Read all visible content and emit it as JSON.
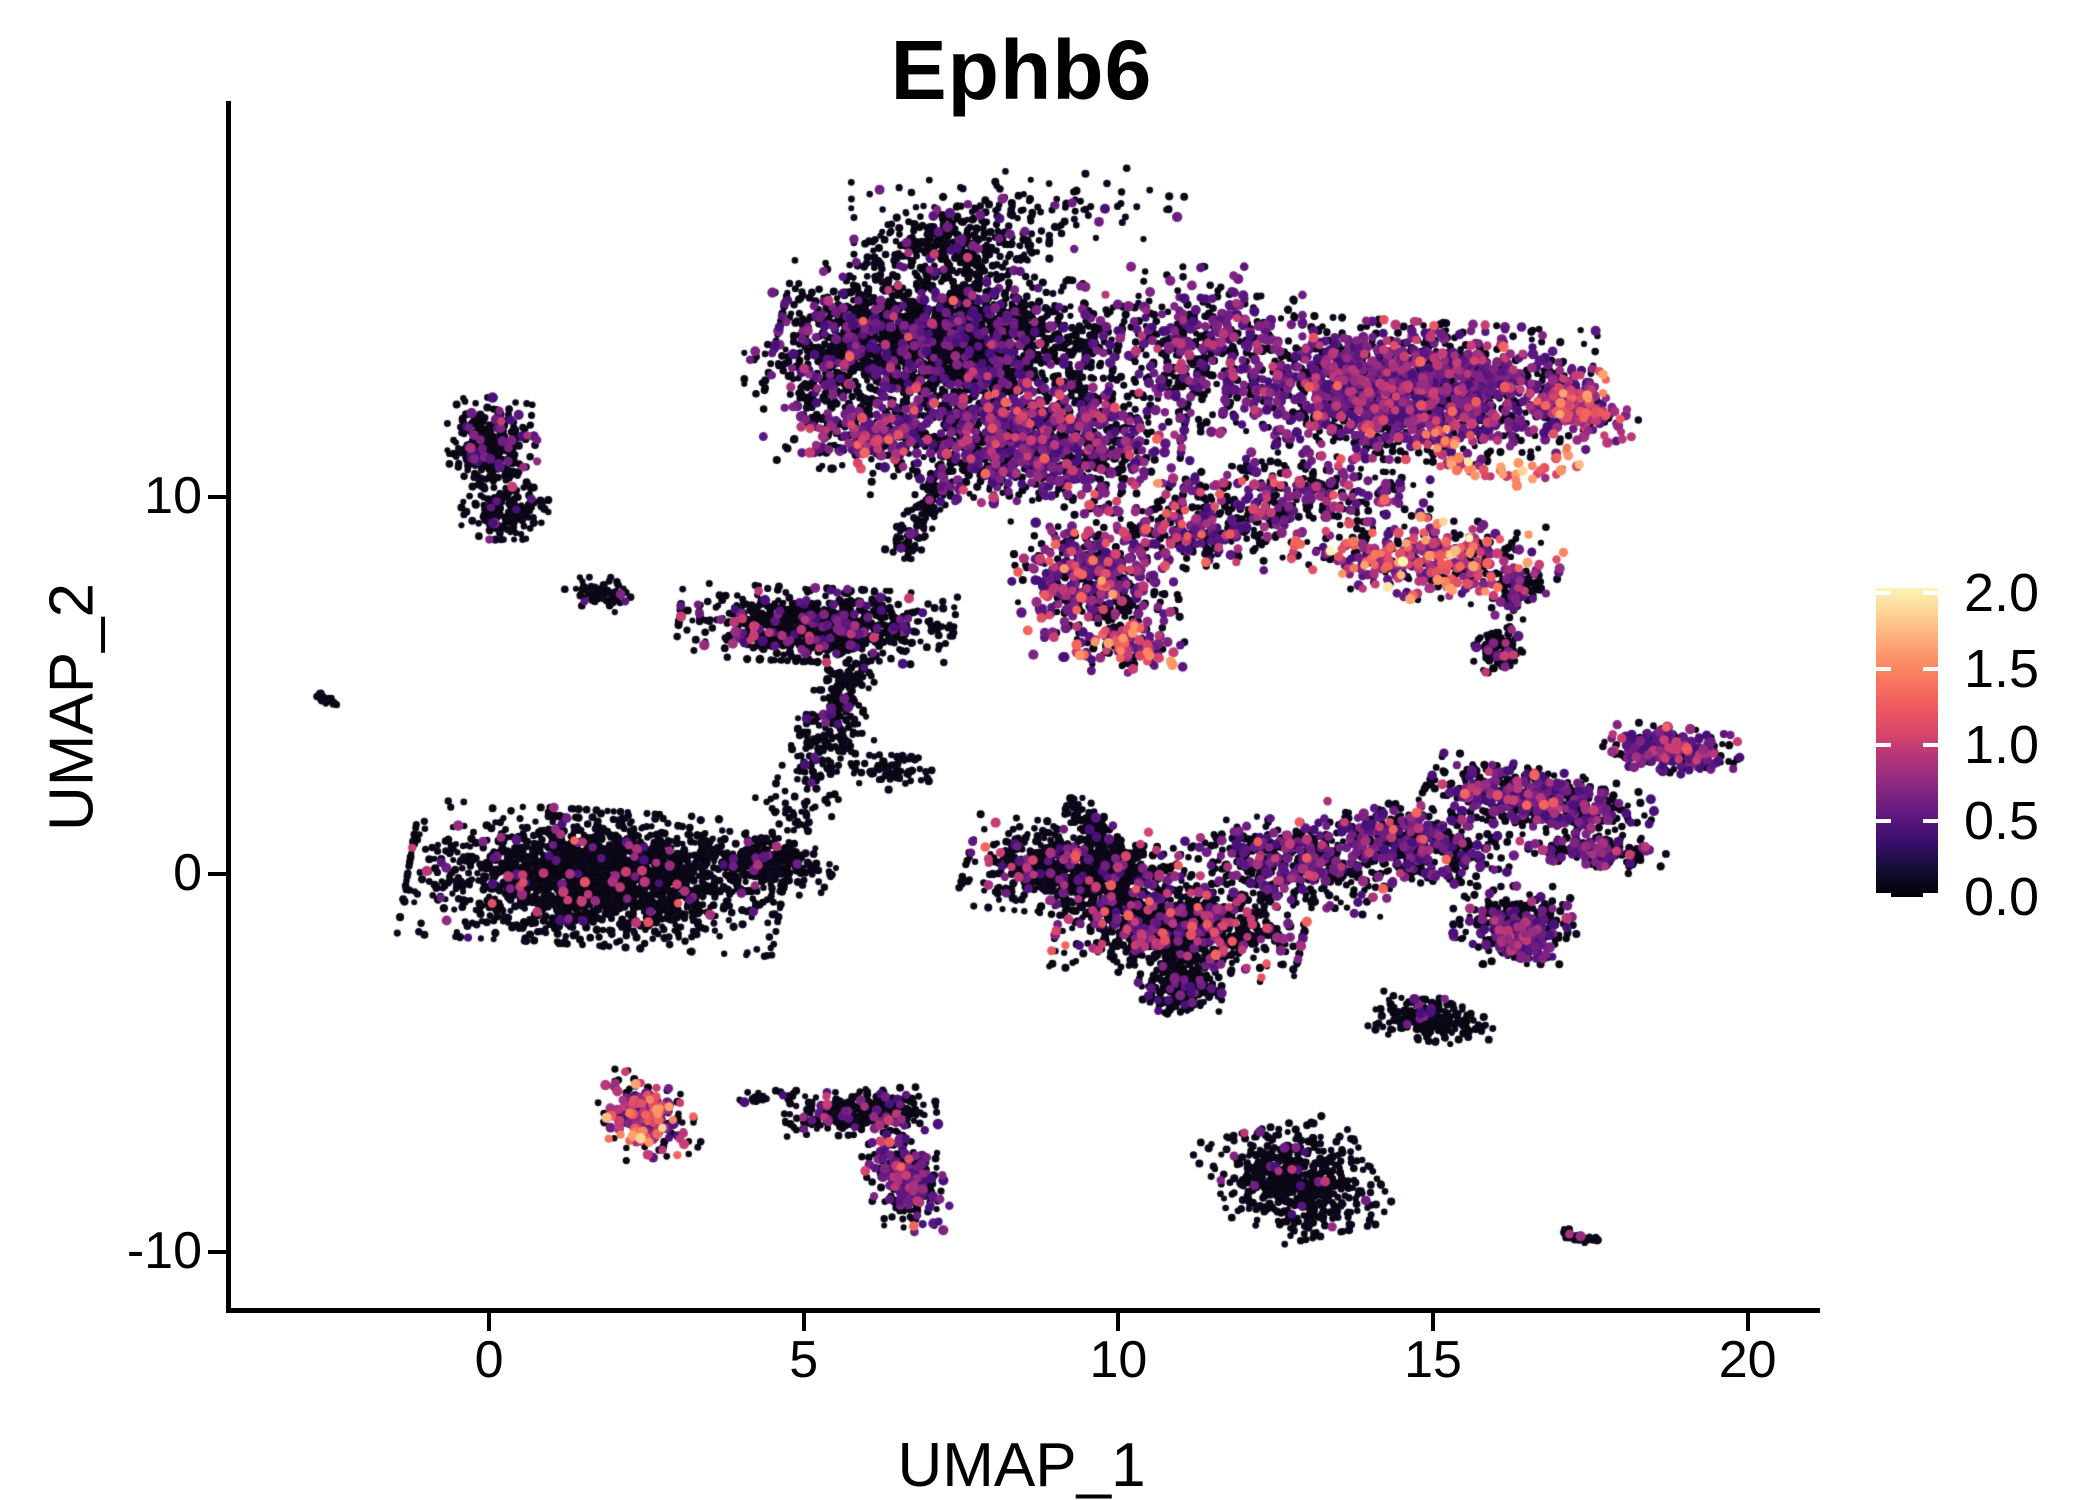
{
  "header": {
    "title": "Ephb6"
  },
  "chart_data": {
    "type": "scatter",
    "title": "Ephb6",
    "xlabel": "UMAP_1",
    "ylabel": "UMAP_2",
    "xlim": [
      -4.15,
      21.07
    ],
    "ylim": [
      -11.54,
      20.42
    ],
    "xticks": [
      0,
      5,
      10,
      15,
      20
    ],
    "yticks": [
      -10,
      0,
      10
    ],
    "grid": false,
    "background": "#FFFFFF",
    "axis_color": "#000000",
    "legend_position": "right",
    "colorbar": {
      "vmin": 0.0,
      "vmax": 2.03,
      "ticks": [
        2.0,
        1.5,
        1.0,
        0.5,
        0.0
      ],
      "tick_labels": [
        "2.0",
        "1.5",
        "1.0",
        "0.5",
        "0.0"
      ],
      "gradient_bottom_to_top": [
        "#000004",
        "#140E36",
        "#3B0F70",
        "#641A80",
        "#8C2981",
        "#B5367A",
        "#DE4968",
        "#F1605D",
        "#FA815F",
        "#FEA477",
        "#FECE91",
        "#FCF4B6"
      ]
    },
    "palette": {
      "zero": [
        "#0A0612",
        "#0D081C"
      ],
      "low": [
        "#48117A",
        "#5B177F",
        "#6E1E81",
        "#7F2482"
      ],
      "mid": [
        "#942C80",
        "#A7327D",
        "#BA3878",
        "#C83E73"
      ],
      "high": [
        "#D6456C",
        "#E25065",
        "#EC5A5F",
        "#F3655C"
      ],
      "hot": [
        "#F8765C",
        "#FB855F",
        "#FD9566",
        "#FDA26E"
      ],
      "top": [
        "#FEBB81",
        "#FED395",
        "#FDE7AC",
        "#FCF4B6"
      ]
    },
    "draw_order": [
      "zero",
      "low",
      "mid",
      "high",
      "hot",
      "top"
    ],
    "point_radius": {
      "zero": [
        3.0,
        4.2
      ],
      "colored": [
        4.0,
        5.3
      ]
    },
    "clusters": [
      {
        "name": "top-peak",
        "shape": "gauss",
        "cx": 7.35,
        "cy": 16.6,
        "rx": 1.35,
        "ry": 0.95,
        "rot": 0,
        "n": 320,
        "mix": {
          "zero": 0.92,
          "low": 0.075,
          "mid": 0.005
        }
      },
      {
        "name": "top-left-core",
        "shape": "gauss",
        "cx": 7.3,
        "cy": 14.2,
        "rx": 2.35,
        "ry": 1.55,
        "rot": -8,
        "n": 2100,
        "mix": {
          "zero": 0.85,
          "low": 0.135,
          "mid": 0.013,
          "high": 0.002
        }
      },
      {
        "name": "top-left-fringe",
        "shape": "gauss",
        "cx": 5.55,
        "cy": 13.1,
        "rx": 1.3,
        "ry": 2.0,
        "rot": 0,
        "n": 300,
        "mix": {
          "zero": 0.77,
          "low": 0.2,
          "mid": 0.03
        }
      },
      {
        "name": "top-left-edge-colored",
        "shape": "gauss",
        "cx": 6.05,
        "cy": 11.6,
        "rx": 0.95,
        "ry": 0.75,
        "rot": 0,
        "n": 210,
        "mix": {
          "zero": 0.5,
          "low": 0.3,
          "mid": 0.15,
          "high": 0.05
        }
      },
      {
        "name": "top-left-lower",
        "shape": "gauss",
        "cx": 8.6,
        "cy": 11.5,
        "rx": 2.1,
        "ry": 1.5,
        "rot": -5,
        "n": 1350,
        "mix": {
          "zero": 0.6,
          "low": 0.31,
          "mid": 0.07,
          "high": 0.02
        }
      },
      {
        "name": "top-bridge",
        "shape": "gauss",
        "cx": 11.2,
        "cy": 13.9,
        "rx": 1.5,
        "ry": 1.9,
        "rot": 0,
        "n": 470,
        "mix": {
          "zero": 0.65,
          "low": 0.31,
          "mid": 0.04
        }
      },
      {
        "name": "top-right-core",
        "shape": "gauss",
        "cx": 14.6,
        "cy": 12.8,
        "rx": 2.5,
        "ry": 1.6,
        "rot": -5,
        "n": 1950,
        "mix": {
          "zero": 0.5,
          "low": 0.38,
          "mid": 0.1,
          "high": 0.02
        }
      },
      {
        "name": "top-right-tip",
        "shape": "gauss",
        "cx": 17.35,
        "cy": 12.35,
        "rx": 0.6,
        "ry": 0.9,
        "rot": 25,
        "n": 170,
        "mix": {
          "zero": 0.15,
          "low": 0.25,
          "mid": 0.4,
          "high": 0.15,
          "hot": 0.05
        }
      },
      {
        "name": "orange-arc",
        "shape": "ring",
        "cx": 16.2,
        "cy": 11.45,
        "rx": 1.1,
        "ry": 0.85,
        "a1": 150,
        "a2": 335,
        "jit": 0.14,
        "n": 62,
        "mix": {
          "mid": 0.2,
          "high": 0.35,
          "hot": 0.33,
          "top": 0.12
        }
      },
      {
        "name": "under-right-sparse",
        "shape": "gauss",
        "cx": 13.0,
        "cy": 10.1,
        "rx": 1.7,
        "ry": 0.9,
        "rot": 0,
        "n": 300,
        "mix": {
          "zero": 0.6,
          "low": 0.3,
          "mid": 0.08,
          "high": 0.02
        }
      },
      {
        "name": "right-mid-scatter",
        "shape": "gauss",
        "cx": 11.4,
        "cy": 9.2,
        "rx": 1.4,
        "ry": 1.0,
        "rot": 0,
        "n": 300,
        "mix": {
          "zero": 0.62,
          "low": 0.27,
          "mid": 0.07,
          "high": 0.03,
          "hot": 0.01
        }
      },
      {
        "name": "pink-band",
        "shape": "gauss",
        "cx": 14.9,
        "cy": 8.35,
        "rx": 1.85,
        "ry": 0.95,
        "rot": -8,
        "n": 440,
        "mix": {
          "zero": 0.37,
          "low": 0.25,
          "mid": 0.17,
          "high": 0.12,
          "hot": 0.08,
          "top": 0.01
        }
      },
      {
        "name": "black-tail",
        "shape": "line",
        "x1": 7.3,
        "y1": 10.7,
        "x2": 6.55,
        "y2": 8.5,
        "w": 0.3,
        "n": 120,
        "mix": {
          "zero": 0.94,
          "low": 0.06
        }
      },
      {
        "name": "beard",
        "shape": "gauss",
        "cx": 9.6,
        "cy": 7.7,
        "rx": 1.1,
        "ry": 1.6,
        "rot": 10,
        "n": 540,
        "mix": {
          "zero": 0.52,
          "low": 0.32,
          "mid": 0.11,
          "high": 0.04,
          "hot": 0.01
        }
      },
      {
        "name": "beard-tip",
        "shape": "gauss",
        "cx": 10.2,
        "cy": 5.95,
        "rx": 0.75,
        "ry": 0.55,
        "rot": 0,
        "n": 120,
        "mix": {
          "zero": 0.3,
          "low": 0.3,
          "mid": 0.22,
          "high": 0.12,
          "hot": 0.06
        }
      },
      {
        "name": "top-scatter",
        "shape": "gauss",
        "cx": 8.4,
        "cy": 17.6,
        "rx": 2.3,
        "ry": 0.95,
        "rot": 0,
        "n": 120,
        "mix": {
          "zero": 0.9,
          "low": 0.1
        }
      },
      {
        "name": "left-upper",
        "shape": "gauss",
        "cx": 0.05,
        "cy": 11.3,
        "rx": 0.62,
        "ry": 1.15,
        "rot": 0,
        "n": 310,
        "mix": {
          "zero": 0.89,
          "low": 0.09,
          "mid": 0.02
        }
      },
      {
        "name": "left-lower",
        "shape": "gauss",
        "cx": 0.25,
        "cy": 9.55,
        "rx": 0.6,
        "ry": 0.6,
        "rot": 0,
        "n": 150,
        "mix": {
          "zero": 0.96,
          "low": 0.04
        }
      },
      {
        "name": "left-tiny",
        "shape": "gauss",
        "cx": 1.8,
        "cy": 7.4,
        "rx": 0.52,
        "ry": 0.4,
        "rot": 0,
        "n": 60,
        "mix": {
          "zero": 0.93,
          "low": 0.07
        }
      },
      {
        "name": "left-dash",
        "shape": "line",
        "x1": -2.75,
        "y1": 4.75,
        "x2": -2.45,
        "y2": 4.5,
        "w": 0.1,
        "n": 16,
        "mix": {
          "zero": 1
        }
      },
      {
        "name": "mid-band",
        "shape": "gauss",
        "cx": 5.2,
        "cy": 6.6,
        "rx": 1.9,
        "ry": 0.85,
        "rot": -4,
        "n": 880,
        "mix": {
          "zero": 0.86,
          "low": 0.1,
          "mid": 0.04
        }
      },
      {
        "name": "mid-trail",
        "shape": "line",
        "x1": 5.8,
        "y1": 5.4,
        "x2": 5.1,
        "y2": 2.4,
        "w": 0.45,
        "n": 230,
        "mix": {
          "zero": 0.97,
          "low": 0.03
        }
      },
      {
        "name": "mid-wisp",
        "shape": "gauss",
        "cx": 6.35,
        "cy": 2.85,
        "rx": 0.75,
        "ry": 0.5,
        "rot": -20,
        "n": 70,
        "mix": {
          "zero": 1
        }
      },
      {
        "name": "bottom-left-main",
        "shape": "gauss",
        "cx": 1.7,
        "cy": -0.1,
        "rx": 2.6,
        "ry": 1.55,
        "rot": -6,
        "n": 2050,
        "mix": {
          "zero": 0.952,
          "low": 0.022,
          "mid": 0.02,
          "high": 0.005,
          "hot": 0.001
        }
      },
      {
        "name": "bottom-left-taper",
        "shape": "gauss",
        "cx": 4.4,
        "cy": 0.3,
        "rx": 0.95,
        "ry": 0.55,
        "rot": -20,
        "n": 260,
        "mix": {
          "zero": 0.97,
          "low": 0.02,
          "mid": 0.01
        }
      },
      {
        "name": "bottom-left-strays",
        "shape": "gauss",
        "cx": 4.8,
        "cy": 1.8,
        "rx": 0.7,
        "ry": 0.8,
        "rot": 0,
        "n": 45,
        "mix": {
          "zero": 1
        }
      },
      {
        "name": "pink-cluster",
        "shape": "gauss",
        "cx": 2.5,
        "cy": -6.3,
        "rx": 0.62,
        "ry": 1.05,
        "rot": 10,
        "n": 235,
        "mix": {
          "zero": 0.42,
          "low": 0.14,
          "mid": 0.22,
          "high": 0.12,
          "hot": 0.09,
          "top": 0.01
        }
      },
      {
        "name": "curve-lead",
        "shape": "line",
        "x1": 3.95,
        "y1": -5.95,
        "x2": 4.9,
        "y2": -5.85,
        "w": 0.15,
        "n": 22,
        "mix": {
          "zero": 0.92,
          "low": 0.08
        }
      },
      {
        "name": "curve-top",
        "shape": "gauss",
        "cx": 5.9,
        "cy": -6.3,
        "rx": 1.05,
        "ry": 0.52,
        "rot": 4,
        "n": 310,
        "mix": {
          "zero": 0.87,
          "low": 0.1,
          "mid": 0.03
        }
      },
      {
        "name": "curve-right",
        "shape": "gauss",
        "cx": 6.6,
        "cy": -8.0,
        "rx": 0.52,
        "ry": 1.3,
        "rot": 8,
        "n": 270,
        "mix": {
          "zero": 0.6,
          "low": 0.28,
          "mid": 0.09,
          "high": 0.03
        }
      },
      {
        "name": "cb-left-wing",
        "shape": "gauss",
        "cx": 9.3,
        "cy": 0.1,
        "rx": 1.5,
        "ry": 1.05,
        "rot": -10,
        "n": 820,
        "mix": {
          "zero": 0.91,
          "low": 0.05,
          "mid": 0.03,
          "high": 0.01
        }
      },
      {
        "name": "cb-spur",
        "shape": "line",
        "x1": 9.35,
        "y1": 1.95,
        "x2": 10.05,
        "y2": -0.1,
        "w": 0.3,
        "n": 150,
        "mix": {
          "zero": 0.95,
          "low": 0.05
        }
      },
      {
        "name": "cb-body",
        "shape": "gauss",
        "cx": 11.0,
        "cy": -1.4,
        "rx": 1.7,
        "ry": 1.15,
        "rot": -8,
        "n": 980,
        "mix": {
          "zero": 0.79,
          "low": 0.13,
          "mid": 0.06,
          "high": 0.02
        }
      },
      {
        "name": "cb-tip",
        "shape": "gauss",
        "cx": 10.95,
        "cy": -3.0,
        "rx": 0.6,
        "ry": 0.6,
        "rot": 0,
        "n": 200,
        "mix": {
          "zero": 0.86,
          "low": 0.12,
          "mid": 0.02
        }
      },
      {
        "name": "cb-right",
        "shape": "gauss",
        "cx": 12.7,
        "cy": 0.3,
        "rx": 1.5,
        "ry": 0.95,
        "rot": -12,
        "n": 500,
        "mix": {
          "zero": 0.7,
          "low": 0.24,
          "mid": 0.05,
          "high": 0.01
        }
      },
      {
        "name": "right-left",
        "shape": "gauss",
        "cx": 14.7,
        "cy": 0.8,
        "rx": 1.4,
        "ry": 0.85,
        "rot": -14,
        "n": 520,
        "mix": {
          "zero": 0.68,
          "low": 0.26,
          "mid": 0.05,
          "high": 0.01
        }
      },
      {
        "name": "right-arm",
        "shape": "gauss",
        "cx": 16.7,
        "cy": 1.95,
        "rx": 1.6,
        "ry": 0.7,
        "rot": -18,
        "n": 640,
        "mix": {
          "zero": 0.6,
          "low": 0.32,
          "mid": 0.07,
          "high": 0.01
        }
      },
      {
        "name": "right-tip",
        "shape": "gauss",
        "cx": 18.8,
        "cy": 3.3,
        "rx": 0.95,
        "ry": 0.52,
        "rot": -14,
        "n": 290,
        "mix": {
          "zero": 0.45,
          "low": 0.44,
          "mid": 0.1,
          "high": 0.01
        }
      },
      {
        "name": "right-low-halo",
        "shape": "gauss",
        "cx": 16.3,
        "cy": -1.35,
        "rx": 0.85,
        "ry": 0.9,
        "rot": 0,
        "n": 260,
        "mix": {
          "zero": 0.85,
          "low": 0.13,
          "mid": 0.02
        }
      },
      {
        "name": "right-low-purple",
        "shape": "gauss",
        "cx": 16.35,
        "cy": -1.6,
        "rx": 0.45,
        "ry": 0.55,
        "rot": 0,
        "n": 150,
        "mix": {
          "zero": 0.25,
          "low": 0.65,
          "mid": 0.1
        }
      },
      {
        "name": "right-arm2",
        "shape": "gauss",
        "cx": 17.6,
        "cy": 0.55,
        "rx": 0.95,
        "ry": 0.4,
        "rot": -8,
        "n": 170,
        "mix": {
          "zero": 0.7,
          "low": 0.26,
          "mid": 0.04
        }
      },
      {
        "name": "farright-top",
        "shape": "gauss",
        "cx": 16.35,
        "cy": 7.5,
        "rx": 0.3,
        "ry": 0.62,
        "rot": -15,
        "n": 95,
        "mix": {
          "zero": 0.8,
          "low": 0.16,
          "mid": 0.04
        }
      },
      {
        "name": "farright-bottom",
        "shape": "gauss",
        "cx": 16.05,
        "cy": 5.95,
        "rx": 0.35,
        "ry": 0.55,
        "rot": 0,
        "n": 100,
        "mix": {
          "zero": 0.85,
          "low": 0.1,
          "mid": 0.05
        }
      },
      {
        "name": "br-small",
        "shape": "gauss",
        "cx": 15.0,
        "cy": -3.85,
        "rx": 0.85,
        "ry": 0.5,
        "rot": -12,
        "n": 215,
        "mix": {
          "zero": 0.96,
          "low": 0.04
        }
      },
      {
        "name": "bc-main",
        "shape": "gauss",
        "cx": 12.8,
        "cy": -8.15,
        "rx": 1.1,
        "ry": 1.3,
        "rot": 20,
        "n": 620,
        "mix": {
          "zero": 0.965,
          "low": 0.03,
          "mid": 0.005
        }
      },
      {
        "name": "brt-dash",
        "shape": "line",
        "x1": 17.05,
        "y1": -9.5,
        "x2": 17.6,
        "y2": -9.7,
        "w": 0.12,
        "n": 42,
        "mix": {
          "zero": 0.95,
          "mid": 0.05
        }
      }
    ]
  }
}
